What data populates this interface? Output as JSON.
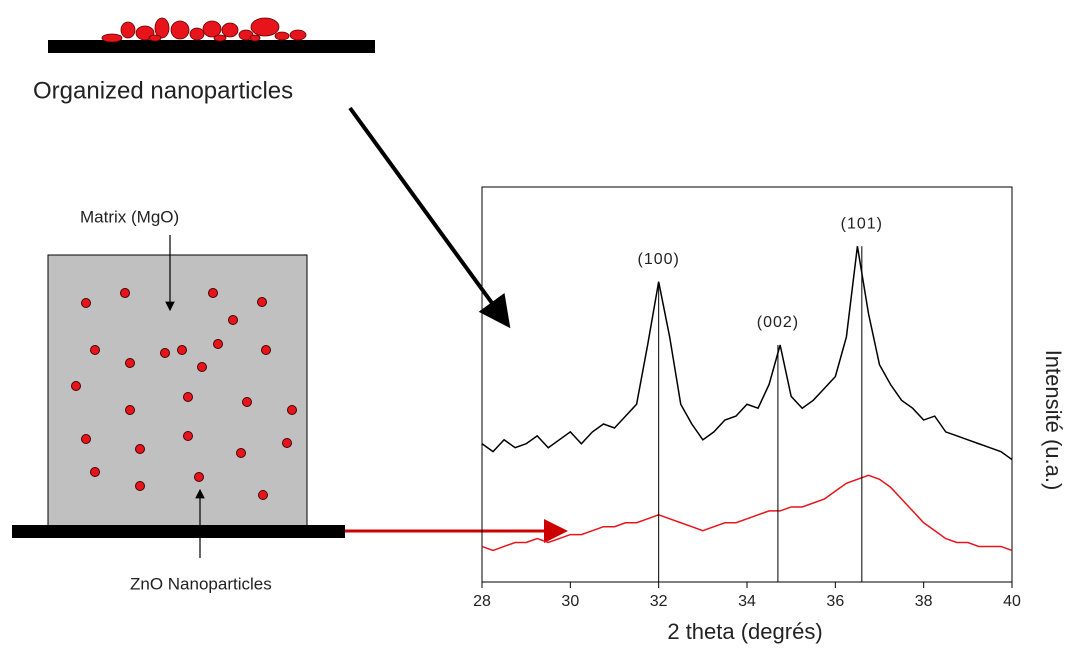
{
  "chart_data": {
    "type": "line",
    "x_label": "2 theta (degrés)",
    "y_label": "Intensité (u.a.)",
    "x": [
      28,
      28.25,
      28.5,
      28.75,
      29,
      29.25,
      29.5,
      29.75,
      30,
      30.25,
      30.5,
      30.75,
      31,
      31.25,
      31.5,
      31.75,
      32,
      32.25,
      32.5,
      32.75,
      33,
      33.25,
      33.5,
      33.75,
      34,
      34.25,
      34.5,
      34.75,
      35,
      35.25,
      35.5,
      35.75,
      36,
      36.25,
      36.5,
      36.75,
      37,
      37.25,
      37.5,
      37.75,
      38,
      38.25,
      38.5,
      38.75,
      39,
      39.25,
      39.5,
      39.75,
      40
    ],
    "series": [
      {
        "color": "#000000",
        "values": [
          35,
          33,
          36,
          34,
          35,
          37,
          34,
          36,
          38,
          35,
          38,
          40,
          39,
          42,
          45,
          60,
          76,
          62,
          45,
          40,
          36,
          38,
          41,
          42,
          45,
          44,
          50,
          60,
          47,
          44,
          46,
          49,
          52,
          62,
          85,
          68,
          55,
          50,
          46,
          44,
          41,
          42,
          38,
          37,
          36,
          35,
          34,
          33,
          31
        ]
      },
      {
        "color": "#e8141c",
        "values": [
          9,
          8,
          9,
          10,
          10,
          11,
          10,
          11,
          12,
          12,
          13,
          14,
          14,
          15,
          15,
          16,
          17,
          16,
          15,
          14,
          13,
          14,
          15,
          15,
          16,
          17,
          18,
          18,
          19,
          19,
          20,
          21,
          23,
          25,
          26,
          27,
          26,
          24,
          21,
          18,
          15,
          13,
          11,
          10,
          10,
          9,
          9,
          9,
          8
        ]
      }
    ],
    "peaks": [
      {
        "x": 32,
        "top": 76,
        "label": "(100)"
      },
      {
        "x": 34.7,
        "top": 60,
        "label": "(002)"
      },
      {
        "x": 36.6,
        "top": 85,
        "label": "(101)"
      }
    ],
    "xlim": [
      28,
      40
    ],
    "xticks": [
      28,
      30,
      32,
      34,
      36,
      38,
      40
    ],
    "ylim": [
      0,
      100
    ]
  },
  "diagram": {
    "top_label": "Organized nanoparticles",
    "matrix_label": "Matrix (MgO)",
    "particles_label": "ZnO Nanoparticles"
  }
}
